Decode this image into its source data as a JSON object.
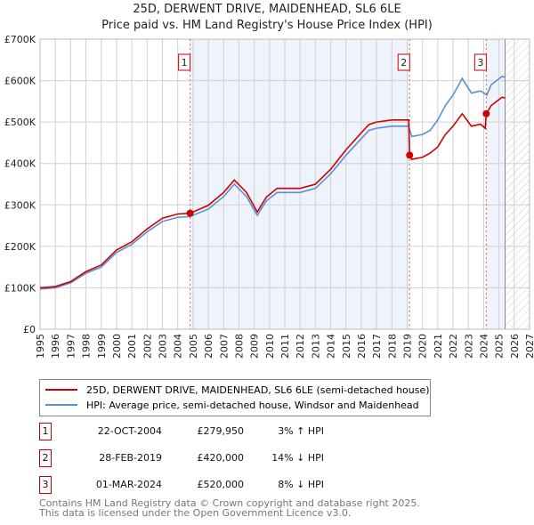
{
  "title": "25D, DERWENT DRIVE, MAIDENHEAD, SL6 6LE",
  "subtitle": "Price paid vs. HM Land Registry's House Price Index (HPI)",
  "chart_data": {
    "type": "line",
    "xlim": [
      1995,
      2027
    ],
    "ylim": [
      0,
      700000
    ],
    "x_ticks": [
      "1995",
      "1996",
      "1997",
      "1998",
      "1999",
      "2000",
      "2001",
      "2002",
      "2003",
      "2004",
      "2005",
      "2006",
      "2007",
      "2008",
      "2009",
      "2010",
      "2011",
      "2012",
      "2013",
      "2014",
      "2015",
      "2016",
      "2017",
      "2018",
      "2019",
      "2020",
      "2021",
      "2022",
      "2023",
      "2024",
      "2025",
      "2026",
      "2027"
    ],
    "y_ticks": [
      {
        "v": 0,
        "label": "£0"
      },
      {
        "v": 100000,
        "label": "£100K"
      },
      {
        "v": 200000,
        "label": "£200K"
      },
      {
        "v": 300000,
        "label": "£300K"
      },
      {
        "v": 400000,
        "label": "£400K"
      },
      {
        "v": 500000,
        "label": "£500K"
      },
      {
        "v": 600000,
        "label": "£600K"
      },
      {
        "v": 700000,
        "label": "£700K"
      }
    ],
    "grid": true,
    "forecast_from": 2025.4,
    "series": [
      {
        "name": "25D, DERWENT DRIVE, MAIDENHEAD, SL6 6LE (semi-detached house)",
        "color": "#cc0000",
        "x": [
          1995,
          1996,
          1997,
          1998,
          1999,
          2000,
          2001,
          2002,
          2003,
          2004,
          2004.81,
          2005,
          2006,
          2007,
          2007.7,
          2008.5,
          2009.2,
          2009.8,
          2010.5,
          2011,
          2012,
          2013,
          2014,
          2015,
          2016,
          2016.5,
          2017,
          2018,
          2019.1,
          2019.16,
          2019.3,
          2020,
          2020.5,
          2021,
          2021.5,
          2022,
          2022.6,
          2023.2,
          2023.8,
          2024.1,
          2024.17,
          2024.5,
          2025.2,
          2025.4
        ],
        "y": [
          100000,
          103000,
          115000,
          139000,
          155000,
          191000,
          211000,
          242000,
          268000,
          278000,
          279950,
          283000,
          299000,
          330000,
          360000,
          330000,
          283000,
          319000,
          340000,
          340000,
          340000,
          350000,
          386000,
          433000,
          474000,
          494000,
          500000,
          505000,
          505000,
          420000,
          410000,
          415000,
          425000,
          440000,
          470000,
          490000,
          520000,
          490000,
          495000,
          485000,
          520000,
          540000,
          560000,
          558000
        ]
      },
      {
        "name": "HPI: Average price, semi-detached house, Windsor and Maidenhead",
        "color": "#5b8fd4",
        "x": [
          1995,
          1996,
          1997,
          1998,
          1999,
          2000,
          2001,
          2002,
          2003,
          2004,
          2004.81,
          2005,
          2006,
          2007,
          2007.7,
          2008.5,
          2009.2,
          2009.8,
          2010.5,
          2011,
          2012,
          2013,
          2014,
          2015,
          2016,
          2016.5,
          2017,
          2018,
          2019.1,
          2019.3,
          2020,
          2020.5,
          2021,
          2021.5,
          2022,
          2022.6,
          2023.2,
          2023.8,
          2024.2,
          2024.5,
          2025.2,
          2025.4
        ],
        "y": [
          97000,
          100000,
          112000,
          135000,
          150000,
          185000,
          205000,
          235000,
          260000,
          270000,
          272000,
          275000,
          290000,
          320000,
          350000,
          320000,
          275000,
          310000,
          330000,
          330000,
          330000,
          340000,
          375000,
          420000,
          460000,
          480000,
          485000,
          490000,
          490000,
          465000,
          470000,
          480000,
          505000,
          540000,
          565000,
          605000,
          570000,
          575000,
          565000,
          590000,
          610000,
          608000
        ]
      }
    ],
    "sales": [
      {
        "id": "1",
        "x": 2004.81,
        "price": 279950,
        "date": "22-OCT-2004",
        "price_label": "£279,950",
        "delta": "3% ↑ HPI"
      },
      {
        "id": "2",
        "x": 2019.16,
        "price": 420000,
        "date": "28-FEB-2019",
        "price_label": "£420,000",
        "delta": "14% ↓ HPI"
      },
      {
        "id": "3",
        "x": 2024.17,
        "price": 520000,
        "date": "01-MAR-2024",
        "price_label": "£520,000",
        "delta": "8% ↓ HPI"
      }
    ]
  },
  "legend": {
    "red": "25D, DERWENT DRIVE, MAIDENHEAD, SL6 6LE (semi-detached house)",
    "blue": "HPI: Average price, semi-detached house, Windsor and Maidenhead"
  },
  "footer": {
    "line1": "Contains HM Land Registry data © Crown copyright and database right 2025.",
    "line2": "This data is licensed under the Open Government Licence v3.0."
  }
}
